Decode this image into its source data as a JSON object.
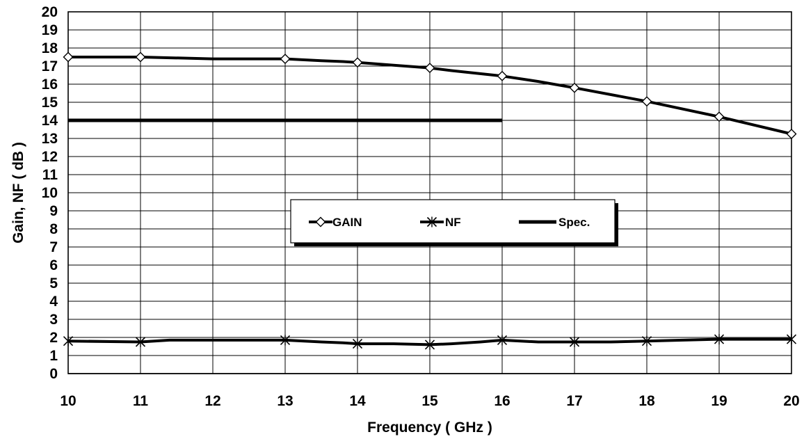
{
  "chart_data": {
    "type": "line",
    "title": "",
    "xlabel": "Frequency ( GHz )",
    "ylabel": "Gain, NF ( dB )",
    "categories": [
      "10",
      "11",
      "12",
      "13",
      "14",
      "15",
      "16",
      "17",
      "18",
      "19",
      "20"
    ],
    "ylim": [
      0,
      20
    ],
    "y_ticks": [
      "0",
      "1",
      "2",
      "3",
      "4",
      "5",
      "6",
      "7",
      "8",
      "9",
      "10",
      "11",
      "12",
      "13",
      "14",
      "15",
      "16",
      "17",
      "18",
      "19",
      "20"
    ],
    "grid": true,
    "legend_position": "center",
    "series": [
      {
        "name": "GAIN",
        "marker": "diamond",
        "color": "#000000",
        "points": [
          [
            0,
            17.5
          ],
          [
            1,
            17.5
          ],
          [
            2,
            17.4
          ],
          [
            3,
            17.4
          ],
          [
            3.5,
            17.3
          ],
          [
            3.8,
            17.25
          ],
          [
            4,
            17.2
          ],
          [
            4.5,
            17.05
          ],
          [
            5,
            16.9
          ],
          [
            5.3,
            16.75
          ],
          [
            6,
            16.45
          ],
          [
            6.5,
            16.15
          ],
          [
            7,
            15.8
          ],
          [
            8,
            15.05
          ],
          [
            9,
            14.2
          ],
          [
            10,
            13.25
          ]
        ],
        "marked_categories": [
          0,
          1,
          3,
          4,
          5,
          6,
          7,
          8,
          9,
          10
        ]
      },
      {
        "name": "NF",
        "marker": "asterisk",
        "color": "#000000",
        "points": [
          [
            0,
            1.8
          ],
          [
            1,
            1.75
          ],
          [
            1.4,
            1.85
          ],
          [
            2,
            1.85
          ],
          [
            3,
            1.85
          ],
          [
            3.5,
            1.75
          ],
          [
            3.8,
            1.7
          ],
          [
            4,
            1.65
          ],
          [
            4.5,
            1.65
          ],
          [
            5,
            1.6
          ],
          [
            5.3,
            1.65
          ],
          [
            5.7,
            1.75
          ],
          [
            6,
            1.85
          ],
          [
            6.5,
            1.75
          ],
          [
            7,
            1.75
          ],
          [
            7.5,
            1.75
          ],
          [
            8,
            1.8
          ],
          [
            8.5,
            1.85
          ],
          [
            9,
            1.9
          ],
          [
            10,
            1.9
          ]
        ],
        "marked_categories": [
          0,
          1,
          3,
          4,
          5,
          6,
          7,
          8,
          9,
          10
        ]
      },
      {
        "name": "Spec.",
        "marker": "none",
        "color": "#000000",
        "points": [
          [
            0,
            14
          ],
          [
            6,
            14
          ]
        ],
        "marked_categories": []
      }
    ]
  }
}
